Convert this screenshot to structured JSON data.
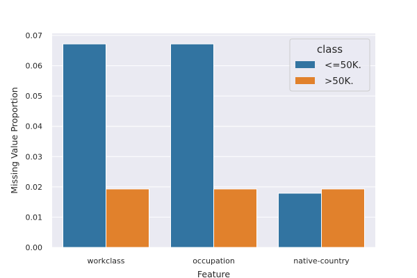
{
  "chart_data": {
    "type": "bar",
    "categories": [
      "workclass",
      "occupation",
      "native-country"
    ],
    "series": [
      {
        "name": "<=50K.",
        "color": "#3274a1",
        "values": [
          0.0672,
          0.0672,
          0.0179
        ]
      },
      {
        "name": ">50K.",
        "color": "#e1812c",
        "values": [
          0.0193,
          0.0193,
          0.0193
        ]
      }
    ],
    "xlabel": "Feature",
    "ylabel": "Missing Value Proportion",
    "ylim": [
      0,
      0.07
    ],
    "yticks": [
      "0.00",
      "0.01",
      "0.02",
      "0.03",
      "0.04",
      "0.05",
      "0.06",
      "0.07"
    ],
    "grid": true,
    "legend": {
      "title": "class",
      "placement": "top-right"
    }
  }
}
